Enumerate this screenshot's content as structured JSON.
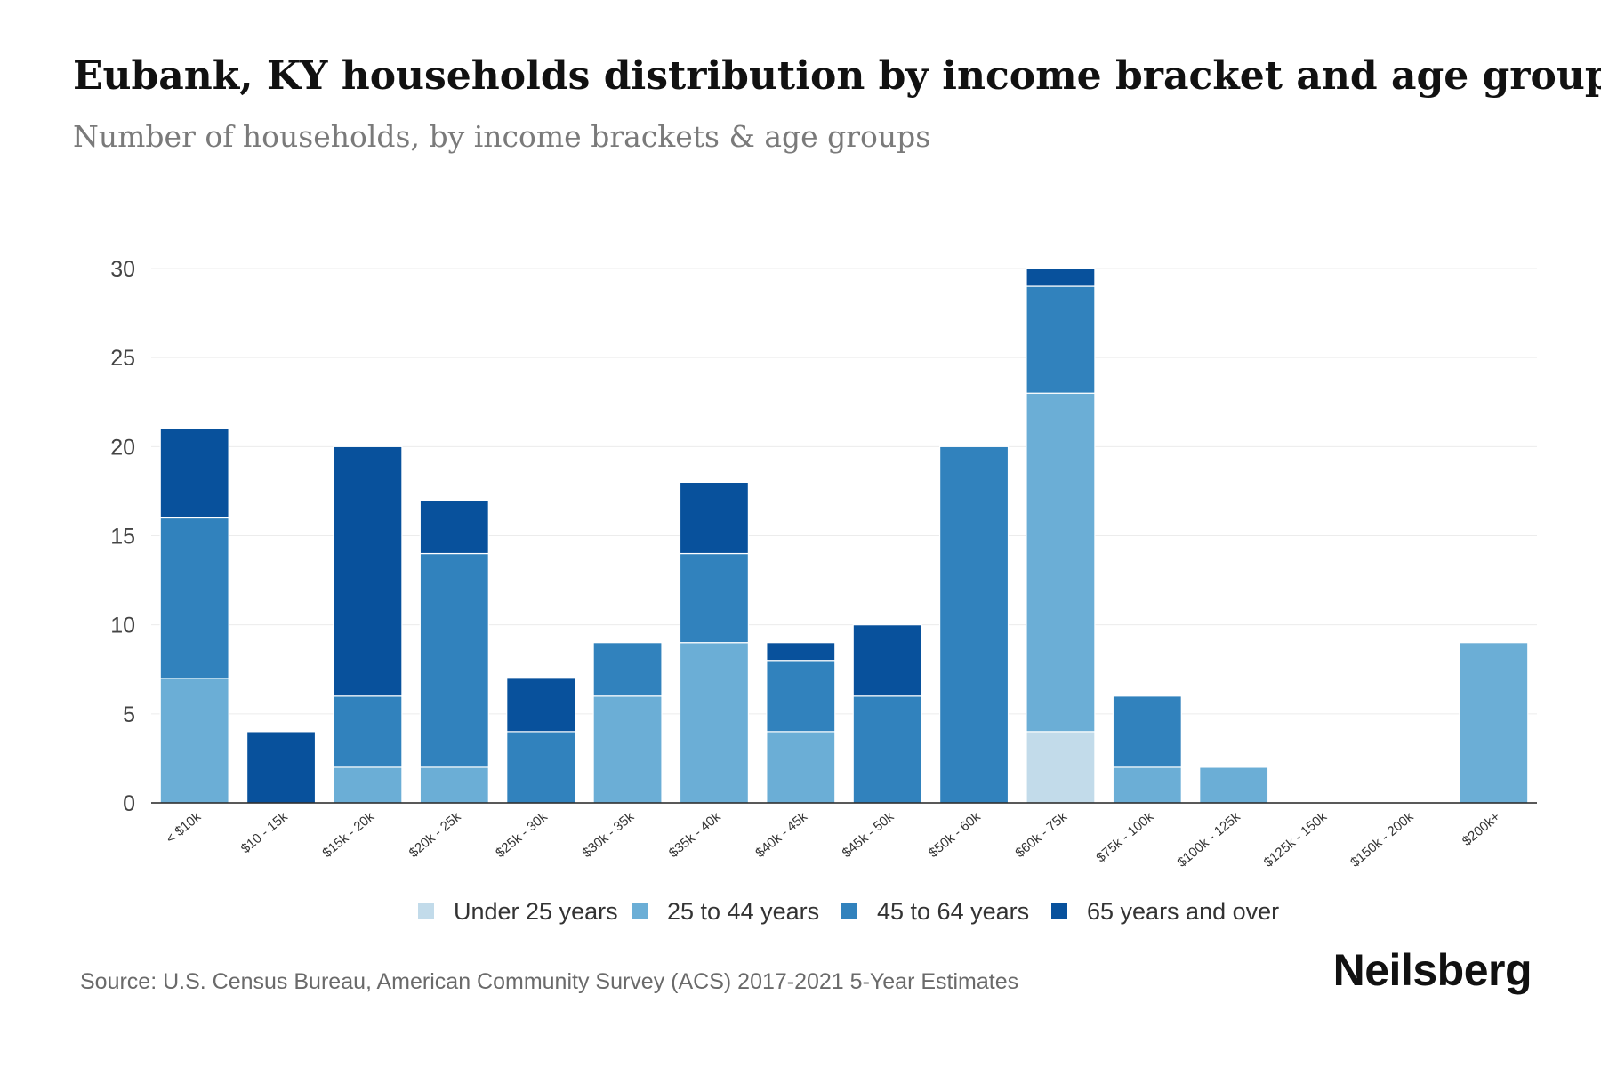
{
  "header": {
    "title": "Eubank, KY households distribution by income bracket and age group",
    "subtitle": "Number of households, by income brackets & age groups"
  },
  "footer": {
    "source": "Source: U.S. Census Bureau, American Community Survey (ACS) 2017-2021 5-Year Estimates",
    "brand": "Neilsberg"
  },
  "chart_data": {
    "type": "bar",
    "stacked": true,
    "title": "Eubank, KY households distribution by income bracket and age group",
    "subtitle": "Number of households, by income brackets & age groups",
    "xlabel": "",
    "ylabel": "",
    "ylim": [
      0,
      30
    ],
    "yticks": [
      0,
      5,
      10,
      15,
      20,
      25,
      30
    ],
    "grid": true,
    "legend_position": "bottom-center",
    "categories": [
      "< $10k",
      "$10 - 15k",
      "$15k - 20k",
      "$20k - 25k",
      "$25k - 30k",
      "$30k - 35k",
      "$35k - 40k",
      "$40k - 45k",
      "$45k - 50k",
      "$50k - 60k",
      "$60k - 75k",
      "$75k - 100k",
      "$100k - 125k",
      "$125k - 150k",
      "$150k - 200k",
      "$200k+"
    ],
    "series": [
      {
        "name": "Under 25 years",
        "color": "#c2dbea",
        "values": [
          0,
          0,
          0,
          0,
          0,
          0,
          0,
          0,
          0,
          0,
          4,
          0,
          0,
          0,
          0,
          0
        ]
      },
      {
        "name": "25 to 44 years",
        "color": "#6baed6",
        "values": [
          7,
          0,
          2,
          2,
          0,
          6,
          9,
          4,
          0,
          0,
          19,
          2,
          2,
          0,
          0,
          9
        ]
      },
      {
        "name": "45 to 64 years",
        "color": "#3182bd",
        "values": [
          9,
          0,
          4,
          12,
          4,
          3,
          5,
          4,
          6,
          20,
          6,
          4,
          0,
          0,
          0,
          0
        ]
      },
      {
        "name": "65 years and over",
        "color": "#08519c",
        "values": [
          5,
          4,
          14,
          3,
          3,
          0,
          4,
          1,
          4,
          0,
          1,
          0,
          0,
          0,
          0,
          0
        ]
      }
    ]
  }
}
